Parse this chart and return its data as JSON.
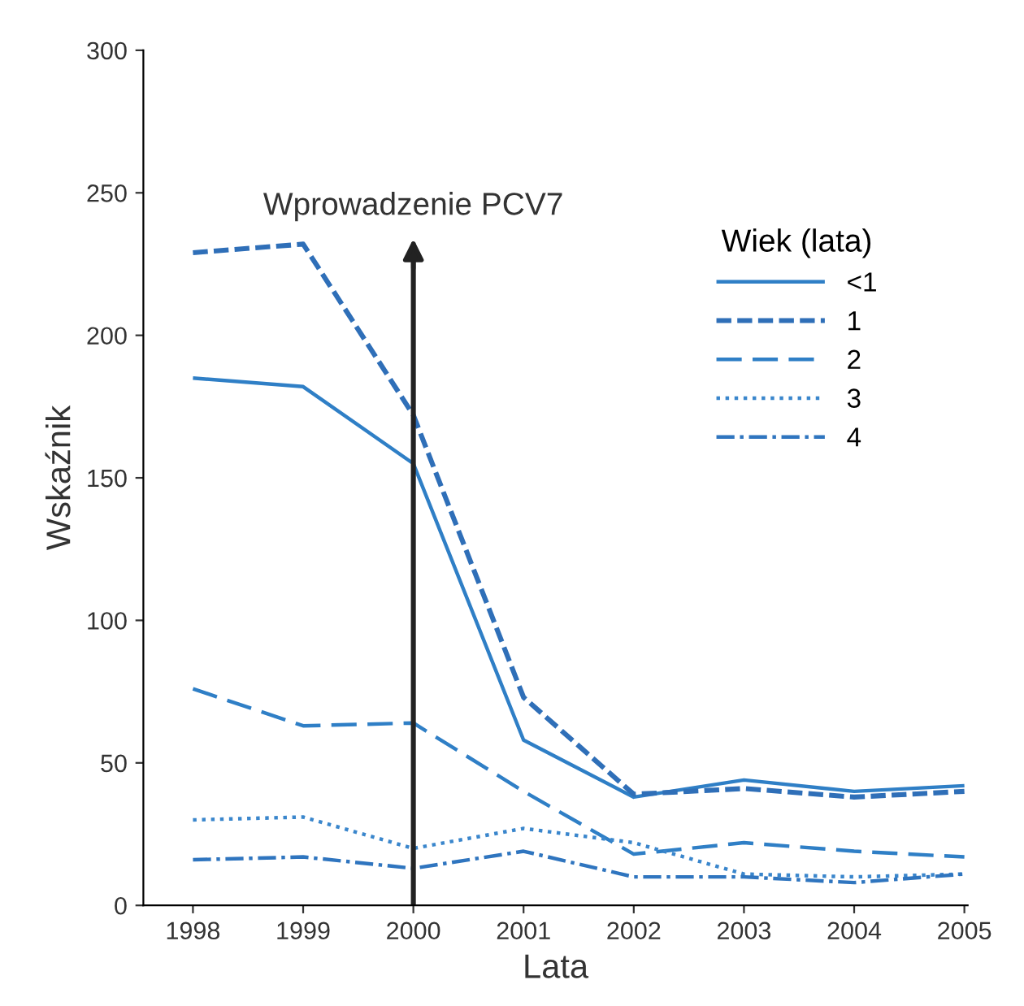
{
  "chart_data": {
    "type": "line",
    "xlabel": "Lata",
    "ylabel": "Wskaźnik",
    "legend_title": "Wiek (lata)",
    "x": [
      1998,
      1999,
      2000,
      2001,
      2002,
      2003,
      2004,
      2005
    ],
    "xlim": [
      1997.55,
      2005.03
    ],
    "xticks": [
      1998,
      1999,
      2000,
      2001,
      2002,
      2003,
      2004,
      2005
    ],
    "ylim": [
      0,
      300
    ],
    "yticks": [
      0,
      50,
      100,
      150,
      200,
      250,
      300
    ],
    "grid": false,
    "legend": "top right",
    "marker": "none",
    "series": [
      {
        "name": "<1",
        "color": "#2f7fc6",
        "line_style": "solid",
        "values": [
          185,
          182,
          155,
          58,
          38,
          44,
          40,
          42
        ]
      },
      {
        "name": "1",
        "color": "#2f6fb8",
        "line_style": "dashed",
        "values": [
          229,
          232,
          172,
          73,
          39,
          41,
          38,
          40
        ]
      },
      {
        "name": "2",
        "color": "#2f7fc6",
        "line_style": "long dashed",
        "values": [
          76,
          63,
          64,
          40,
          18,
          22,
          19,
          17
        ]
      },
      {
        "name": "3",
        "color": "#3a86cc",
        "line_style": "dotted",
        "values": [
          30,
          31,
          20,
          27,
          22,
          11,
          10,
          11
        ]
      },
      {
        "name": "4",
        "color": "#2f75bf",
        "line_style": "dashdot",
        "values": [
          16,
          17,
          13,
          19,
          10,
          10,
          8,
          11
        ]
      }
    ],
    "ref_lines": [
      {
        "axis": "x",
        "value": 2000,
        "label": "Wprowadzenie PCV7",
        "color": "#222222"
      }
    ]
  }
}
